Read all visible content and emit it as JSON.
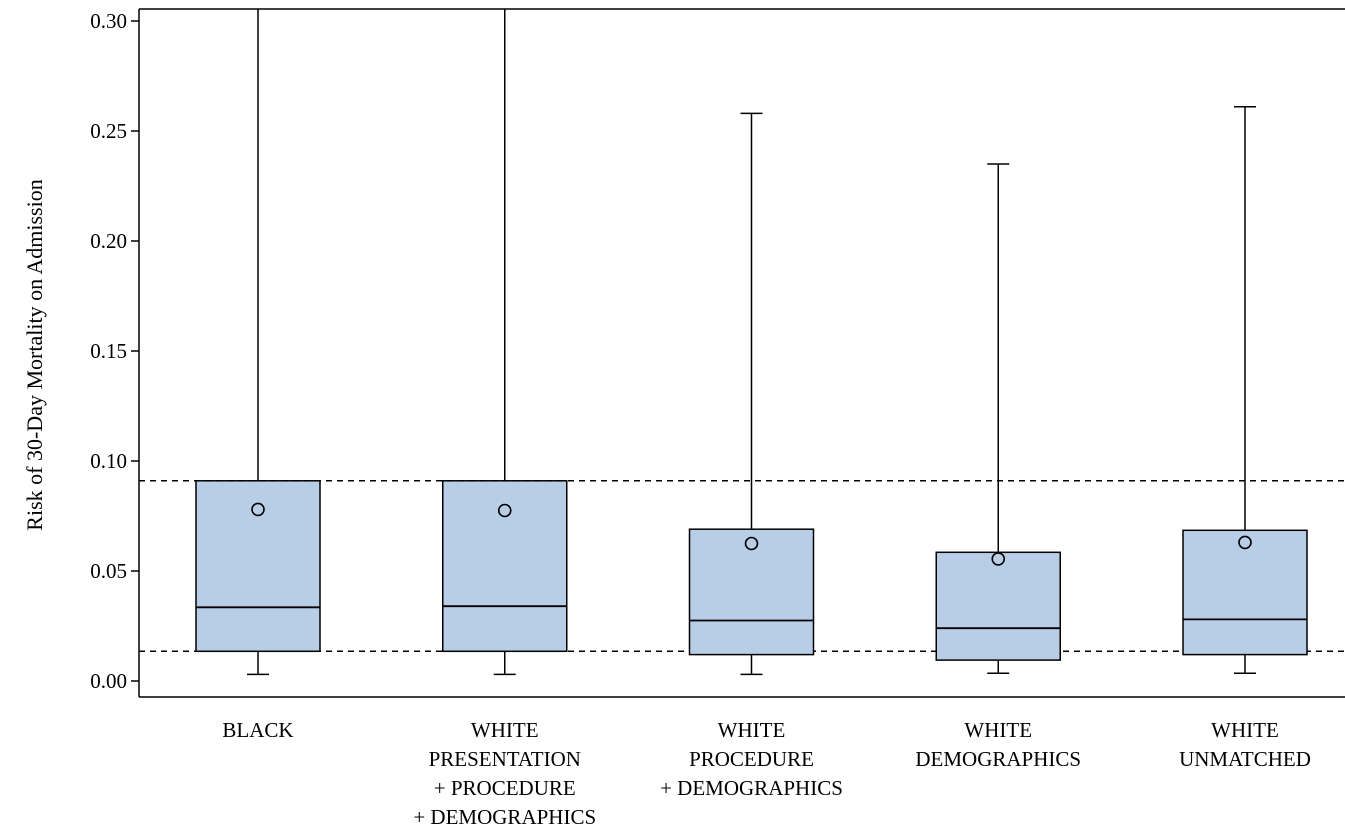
{
  "chart_data": {
    "type": "box",
    "title": "",
    "xlabel": "",
    "ylabel": "Risk of 30-Day Mortality on Admission",
    "ylim": [
      0,
      0.3
    ],
    "yticks": [
      "0.00",
      "0.05",
      "0.10",
      "0.15",
      "0.20",
      "0.25",
      "0.30"
    ],
    "grid": false,
    "legend": "none",
    "reference_lines": [
      {
        "y": 0.091,
        "style": "dashed"
      },
      {
        "y": 0.0135,
        "style": "dashed"
      }
    ],
    "categories": [
      {
        "lines": [
          "BLACK"
        ]
      },
      {
        "lines": [
          "WHITE",
          "PRESENTATION",
          "+ PROCEDURE",
          "+ DEMOGRAPHICS"
        ]
      },
      {
        "lines": [
          "WHITE",
          "PROCEDURE",
          "+ DEMOGRAPHICS"
        ]
      },
      {
        "lines": [
          "WHITE",
          "DEMOGRAPHICS"
        ]
      },
      {
        "lines": [
          "WHITE",
          "UNMATCHED"
        ]
      }
    ],
    "boxes": [
      {
        "whisker_low": 0.003,
        "q1": 0.0135,
        "median": 0.0335,
        "q3": 0.091,
        "whisker_high": 0.3,
        "whisker_high_truncated": true,
        "mean": 0.078
      },
      {
        "whisker_low": 0.003,
        "q1": 0.0135,
        "median": 0.034,
        "q3": 0.091,
        "whisker_high": 0.3,
        "whisker_high_truncated": true,
        "mean": 0.0775
      },
      {
        "whisker_low": 0.003,
        "q1": 0.012,
        "median": 0.0275,
        "q3": 0.069,
        "whisker_high": 0.258,
        "mean": 0.0625
      },
      {
        "whisker_low": 0.0035,
        "q1": 0.0095,
        "median": 0.024,
        "q3": 0.0585,
        "whisker_high": 0.235,
        "mean": 0.0555
      },
      {
        "whisker_low": 0.0035,
        "q1": 0.012,
        "median": 0.028,
        "q3": 0.0685,
        "whisker_high": 0.261,
        "mean": 0.063
      }
    ],
    "colors": {
      "box_fill": "#b8cde6",
      "stroke": "#000000"
    }
  }
}
